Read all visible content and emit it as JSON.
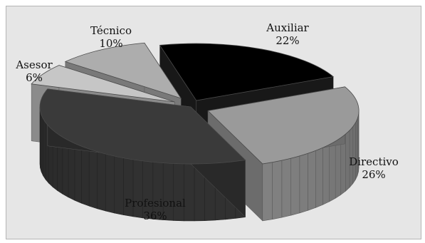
{
  "chart_data": {
    "type": "pie",
    "style": "3d-exploded",
    "title": "",
    "categories": [
      "Auxiliar",
      "Directivo",
      "Profesional",
      "Asesor",
      "Técnico"
    ],
    "values": [
      22,
      26,
      36,
      6,
      10
    ],
    "value_labels": [
      "22%",
      "26%",
      "36%",
      "6%",
      "10%"
    ],
    "colors": [
      "#000000",
      "#9a9a9a",
      "#3a3a3a",
      "#c6c6c6",
      "#adadad"
    ],
    "legend": "none"
  }
}
